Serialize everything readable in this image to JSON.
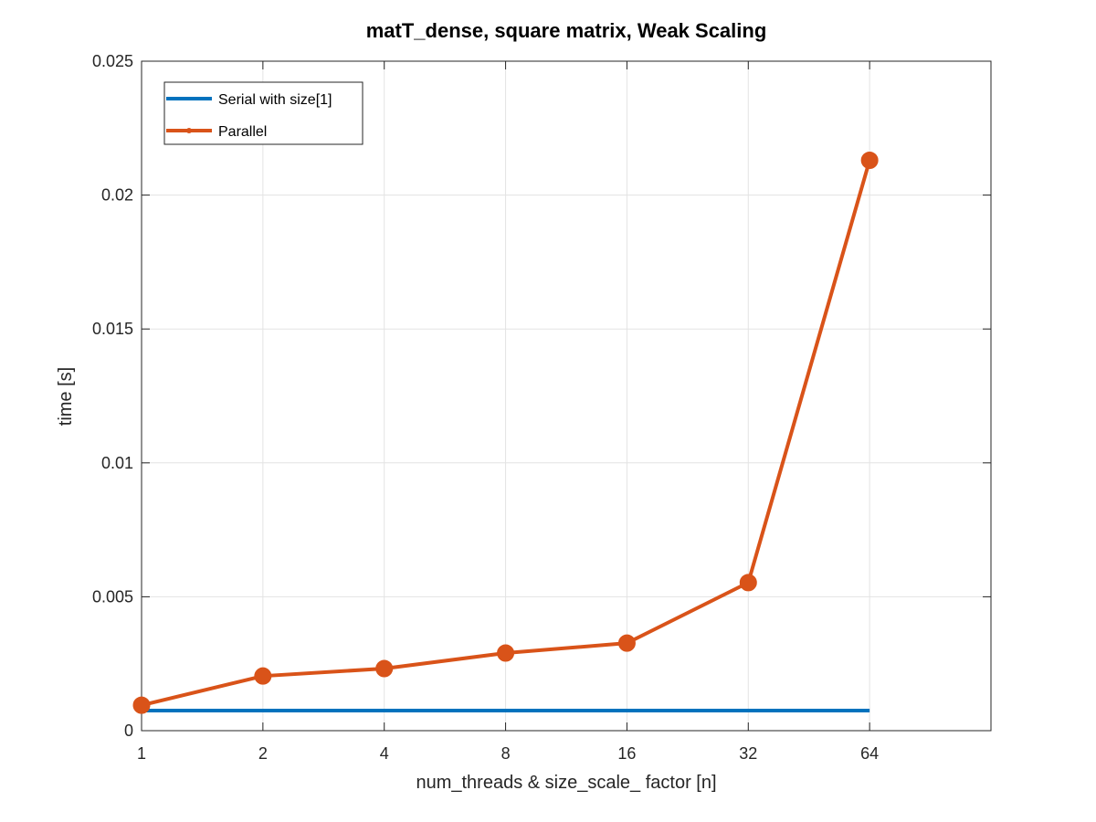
{
  "chart_data": {
    "type": "line",
    "title": "matT_dense, square matrix, Weak Scaling",
    "xlabel": "num_threads & size_scale_ factor [n]",
    "ylabel": "time [s]",
    "x_scale": "log2",
    "xlim": [
      1,
      128
    ],
    "ylim": [
      0,
      0.025
    ],
    "x_ticks": [
      1,
      2,
      4,
      8,
      16,
      32,
      64
    ],
    "x_tick_labels": [
      "1",
      "2",
      "4",
      "8",
      "16",
      "32",
      "64"
    ],
    "y_ticks": [
      0,
      0.005,
      0.01,
      0.015,
      0.02,
      0.025
    ],
    "y_tick_labels": [
      "0",
      "0.005",
      "0.01",
      "0.015",
      "0.02",
      "0.025"
    ],
    "grid": true,
    "legend_position": "top-left",
    "series": [
      {
        "name": "Serial with size[1]",
        "color": "#0072BD",
        "marker": "none",
        "x": [
          1,
          64
        ],
        "y": [
          0.00075,
          0.00075
        ]
      },
      {
        "name": "Parallel",
        "color": "#D95319",
        "marker": "circle",
        "x": [
          1,
          2,
          4,
          8,
          16,
          32,
          64
        ],
        "y": [
          0.00095,
          0.00204,
          0.00232,
          0.0029,
          0.00327,
          0.00553,
          0.0213
        ]
      }
    ]
  }
}
